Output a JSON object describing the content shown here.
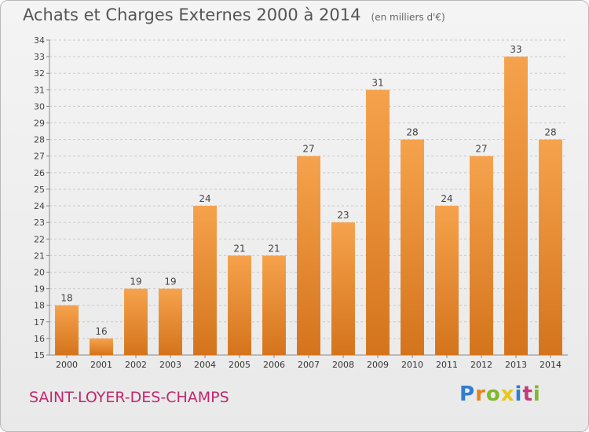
{
  "header": {
    "title": "Achats et Charges Externes 2000 à 2014",
    "subtitle": "(en milliers d'€)"
  },
  "footer": {
    "place": "SAINT-LOYER-DES-CHAMPS",
    "logo_text": "Proxiti",
    "logo_colors": [
      "#2e7fd1",
      "#e8831c",
      "#7fb82b",
      "#e8c51a",
      "#2e7fd1",
      "#c23a7a",
      "#7fb82b"
    ]
  },
  "chart_data": {
    "type": "bar",
    "categories": [
      "2000",
      "2001",
      "2002",
      "2003",
      "2004",
      "2005",
      "2006",
      "2007",
      "2008",
      "2009",
      "2010",
      "2011",
      "2012",
      "2013",
      "2014"
    ],
    "values": [
      18,
      16,
      19,
      19,
      24,
      21,
      21,
      27,
      23,
      31,
      28,
      24,
      27,
      33,
      28
    ],
    "title": "Achats et Charges Externes 2000 à 2014",
    "subtitle": "(en milliers d'€)",
    "xlabel": "",
    "ylabel": "",
    "ylim": [
      15,
      34
    ],
    "yticks": [
      15,
      16,
      17,
      18,
      19,
      20,
      21,
      22,
      23,
      24,
      25,
      26,
      27,
      28,
      29,
      30,
      31,
      32,
      33,
      34
    ],
    "grid": "horizontal-dashed",
    "bar_color_top": "#f6a24c",
    "bar_color_bottom": "#d4741c"
  }
}
